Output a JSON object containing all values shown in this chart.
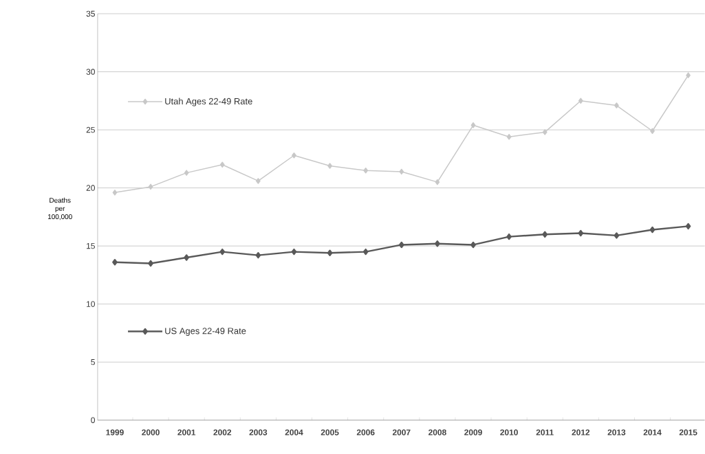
{
  "chart_data": {
    "type": "line",
    "ylabel": "Deaths per 100,000",
    "categories": [
      "1999",
      "2000",
      "2001",
      "2002",
      "2003",
      "2004",
      "2005",
      "2006",
      "2007",
      "2008",
      "2009",
      "2010",
      "2011",
      "2012",
      "2013",
      "2014",
      "2015"
    ],
    "series": [
      {
        "name": "Utah Ages 22-49 Rate",
        "color": "#c8c8c8",
        "values": [
          19.6,
          20.1,
          21.3,
          22.0,
          20.6,
          22.8,
          21.9,
          21.5,
          21.4,
          20.5,
          25.4,
          24.4,
          24.8,
          27.5,
          27.1,
          24.9,
          29.7
        ]
      },
      {
        "name": "US Ages 22-49 Rate",
        "color": "#595959",
        "values": [
          13.6,
          13.5,
          14.0,
          14.5,
          14.2,
          14.5,
          14.4,
          14.5,
          15.1,
          15.2,
          15.1,
          15.8,
          16.0,
          16.1,
          15.9,
          16.4,
          16.7
        ]
      }
    ],
    "ylim": [
      0,
      35
    ],
    "yticks": [
      0,
      5,
      10,
      15,
      20,
      25,
      30,
      35
    ],
    "grid": "y",
    "legend": "left",
    "marker": "diamond",
    "line_style": "solid"
  }
}
